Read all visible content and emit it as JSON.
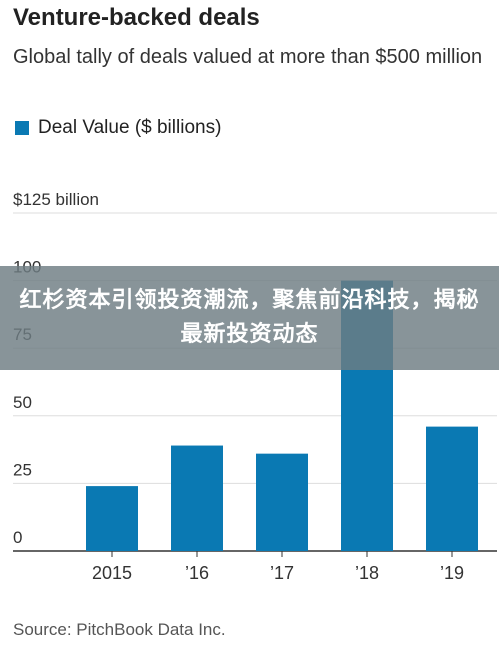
{
  "header": {
    "title": "Venture-backed deals",
    "subtitle": "Global tally of deals valued at more than $500 million"
  },
  "overlay": {
    "text": "红杉资本引领投资潮流，聚焦前沿科技，揭秘最新投资动态"
  },
  "source": "Source: PitchBook Data Inc.",
  "colors": {
    "bar": "#0a79b3",
    "gridline": "#dddddd",
    "axis": "#333333",
    "banner": "#6e7d82"
  },
  "chart_data": {
    "type": "bar",
    "title": "Venture-backed deals",
    "subtitle": "Global tally of deals valued at more than $500 million",
    "categories": [
      "2015",
      "’16",
      "’17",
      "’18",
      "’19"
    ],
    "series": [
      {
        "name": "Deal Value ($ billions)",
        "values": [
          24,
          39,
          36,
          100,
          46
        ]
      }
    ],
    "ylim": [
      0,
      125
    ],
    "yticks": [
      0,
      25,
      50,
      75,
      100,
      125
    ],
    "ytick_labels": [
      "0",
      "25",
      "50",
      "75",
      "100",
      "$125 billion"
    ],
    "grid": true,
    "legend_placement": "top-left"
  }
}
